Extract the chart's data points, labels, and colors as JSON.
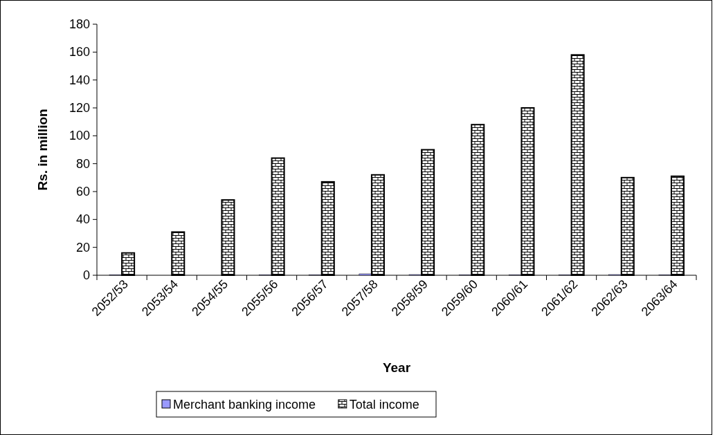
{
  "chart_data": {
    "type": "bar",
    "xlabel": "Year",
    "ylabel": "Rs. in million",
    "categories": [
      "2052/53",
      "2053/54",
      "2054/55",
      "2055/56",
      "2056/57",
      "2057/58",
      "2058/59",
      "2059/60",
      "2060/61",
      "2061/62",
      "2062/63",
      "2063/64"
    ],
    "series": [
      {
        "name": "Merchant banking income",
        "color": "#9999ff",
        "values": [
          0.4,
          0,
          0,
          0.4,
          0.4,
          1,
          0.5,
          0.4,
          0.4,
          0.4,
          0.5,
          0.4
        ]
      },
      {
        "name": "Total income",
        "color": "#000000",
        "values": [
          16,
          31,
          54,
          84,
          67,
          72,
          90,
          108,
          120,
          158,
          70,
          71
        ]
      }
    ],
    "ylim": [
      0,
      180
    ],
    "yticks": [
      0,
      20,
      40,
      60,
      80,
      100,
      120,
      140,
      160,
      180
    ],
    "grid": false,
    "legend": "bottom"
  }
}
